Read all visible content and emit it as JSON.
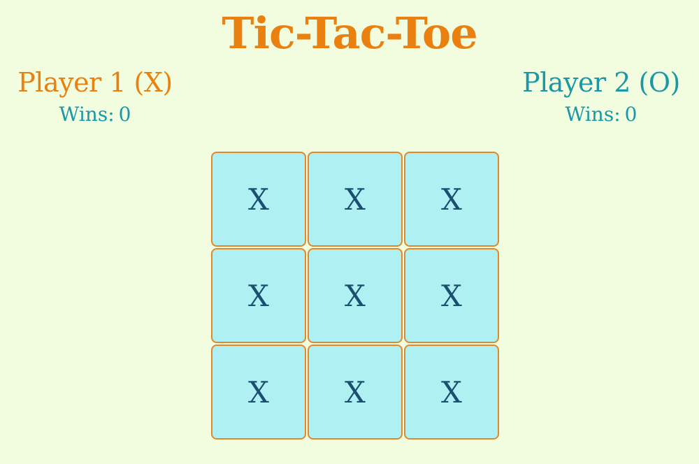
{
  "title": "Tic-Tac-Toe",
  "players": [
    {
      "name": "Player 1 (X)",
      "wins_label": "Wins:",
      "wins": "0"
    },
    {
      "name": "Player 2 (O)",
      "wins_label": "Wins:",
      "wins": "0"
    }
  ],
  "board": {
    "cells": [
      "X",
      "X",
      "X",
      "X",
      "X",
      "X",
      "X",
      "X",
      "X"
    ]
  },
  "colors": {
    "background": "#f2fde0",
    "accent_orange": "#ea800f",
    "accent_teal": "#1b97a6",
    "cell_fill": "#aff1f2",
    "cell_border": "#e3872a",
    "mark": "#1b4f72"
  }
}
